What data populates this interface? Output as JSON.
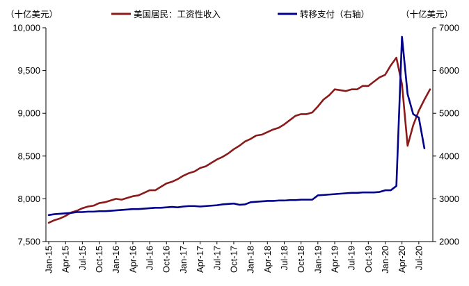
{
  "chart_data": {
    "type": "line",
    "unit_left": "（十亿美元）",
    "unit_right": "（十亿美元）",
    "ylim_left": [
      7500,
      10000
    ],
    "yticks_left": [
      "7,500",
      "8,000",
      "8,500",
      "9,000",
      "9,500",
      "10,000"
    ],
    "ylim_right": [
      2000,
      7000
    ],
    "yticks_right": [
      "2000",
      "3000",
      "4000",
      "5000",
      "6000",
      "7000"
    ],
    "x_tick_labels": [
      "Jan-15",
      "Apr-15",
      "Jul-15",
      "Oct-15",
      "Jan-16",
      "Apr-16",
      "Jul-16",
      "Oct-16",
      "Jan-17",
      "Apr-17",
      "Jul-17",
      "Oct-17",
      "Jan-18",
      "Apr-18",
      "Jul-18",
      "Oct-18",
      "Jan-19",
      "Apr-19",
      "Jul-19",
      "Oct-19",
      "Jan-20",
      "Apr-20",
      "Jul-20"
    ],
    "grid": false,
    "legend_position": "top",
    "series": [
      {
        "name": "美国居民：工资性收入",
        "axis": "left",
        "color": "#8B1A1A",
        "values": [
          [
            "2015-01",
            7720
          ],
          [
            "2015-02",
            7750
          ],
          [
            "2015-03",
            7770
          ],
          [
            "2015-04",
            7800
          ],
          [
            "2015-05",
            7840
          ],
          [
            "2015-06",
            7860
          ],
          [
            "2015-07",
            7890
          ],
          [
            "2015-08",
            7910
          ],
          [
            "2015-09",
            7920
          ],
          [
            "2015-10",
            7950
          ],
          [
            "2015-11",
            7960
          ],
          [
            "2015-12",
            7980
          ],
          [
            "2016-01",
            8000
          ],
          [
            "2016-02",
            7990
          ],
          [
            "2016-03",
            8010
          ],
          [
            "2016-04",
            8030
          ],
          [
            "2016-05",
            8040
          ],
          [
            "2016-06",
            8070
          ],
          [
            "2016-07",
            8100
          ],
          [
            "2016-08",
            8100
          ],
          [
            "2016-09",
            8140
          ],
          [
            "2016-10",
            8180
          ],
          [
            "2016-11",
            8200
          ],
          [
            "2016-12",
            8230
          ],
          [
            "2017-01",
            8270
          ],
          [
            "2017-02",
            8300
          ],
          [
            "2017-03",
            8320
          ],
          [
            "2017-04",
            8360
          ],
          [
            "2017-05",
            8380
          ],
          [
            "2017-06",
            8420
          ],
          [
            "2017-07",
            8460
          ],
          [
            "2017-08",
            8490
          ],
          [
            "2017-09",
            8530
          ],
          [
            "2017-10",
            8580
          ],
          [
            "2017-11",
            8620
          ],
          [
            "2017-12",
            8670
          ],
          [
            "2018-01",
            8700
          ],
          [
            "2018-02",
            8740
          ],
          [
            "2018-03",
            8750
          ],
          [
            "2018-04",
            8780
          ],
          [
            "2018-05",
            8810
          ],
          [
            "2018-06",
            8830
          ],
          [
            "2018-07",
            8870
          ],
          [
            "2018-08",
            8920
          ],
          [
            "2018-09",
            8970
          ],
          [
            "2018-10",
            8990
          ],
          [
            "2018-11",
            8990
          ],
          [
            "2018-12",
            9010
          ],
          [
            "2019-01",
            9080
          ],
          [
            "2019-02",
            9160
          ],
          [
            "2019-03",
            9210
          ],
          [
            "2019-04",
            9280
          ],
          [
            "2019-05",
            9270
          ],
          [
            "2019-06",
            9260
          ],
          [
            "2019-07",
            9280
          ],
          [
            "2019-08",
            9280
          ],
          [
            "2019-09",
            9320
          ],
          [
            "2019-10",
            9320
          ],
          [
            "2019-11",
            9370
          ],
          [
            "2019-12",
            9420
          ],
          [
            "2020-01",
            9450
          ],
          [
            "2020-02",
            9560
          ],
          [
            "2020-03",
            9650
          ],
          [
            "2020-04",
            9340
          ],
          [
            "2020-05",
            8620
          ],
          [
            "2020-06",
            8860
          ],
          [
            "2020-07",
            9030
          ],
          [
            "2020-08",
            9160
          ],
          [
            "2020-09",
            9280
          ]
        ]
      },
      {
        "name": "转移支付（右轴）",
        "axis": "right",
        "color": "#00008B",
        "values": [
          [
            "2015-01",
            2620
          ],
          [
            "2015-02",
            2640
          ],
          [
            "2015-03",
            2650
          ],
          [
            "2015-04",
            2660
          ],
          [
            "2015-05",
            2670
          ],
          [
            "2015-06",
            2690
          ],
          [
            "2015-07",
            2690
          ],
          [
            "2015-08",
            2700
          ],
          [
            "2015-09",
            2700
          ],
          [
            "2015-10",
            2710
          ],
          [
            "2015-11",
            2710
          ],
          [
            "2015-12",
            2720
          ],
          [
            "2016-01",
            2730
          ],
          [
            "2016-02",
            2740
          ],
          [
            "2016-03",
            2750
          ],
          [
            "2016-04",
            2760
          ],
          [
            "2016-05",
            2760
          ],
          [
            "2016-06",
            2770
          ],
          [
            "2016-07",
            2780
          ],
          [
            "2016-08",
            2790
          ],
          [
            "2016-09",
            2790
          ],
          [
            "2016-10",
            2800
          ],
          [
            "2016-11",
            2810
          ],
          [
            "2016-12",
            2800
          ],
          [
            "2017-01",
            2820
          ],
          [
            "2017-02",
            2830
          ],
          [
            "2017-03",
            2830
          ],
          [
            "2017-04",
            2820
          ],
          [
            "2017-05",
            2830
          ],
          [
            "2017-06",
            2840
          ],
          [
            "2017-07",
            2850
          ],
          [
            "2017-08",
            2870
          ],
          [
            "2017-09",
            2880
          ],
          [
            "2017-10",
            2890
          ],
          [
            "2017-11",
            2860
          ],
          [
            "2017-12",
            2870
          ],
          [
            "2018-01",
            2920
          ],
          [
            "2018-02",
            2930
          ],
          [
            "2018-03",
            2940
          ],
          [
            "2018-04",
            2950
          ],
          [
            "2018-05",
            2950
          ],
          [
            "2018-06",
            2960
          ],
          [
            "2018-07",
            2960
          ],
          [
            "2018-08",
            2970
          ],
          [
            "2018-09",
            2970
          ],
          [
            "2018-10",
            2980
          ],
          [
            "2018-11",
            2980
          ],
          [
            "2018-12",
            2980
          ],
          [
            "2019-01",
            3080
          ],
          [
            "2019-02",
            3090
          ],
          [
            "2019-03",
            3100
          ],
          [
            "2019-04",
            3110
          ],
          [
            "2019-05",
            3120
          ],
          [
            "2019-06",
            3130
          ],
          [
            "2019-07",
            3140
          ],
          [
            "2019-08",
            3140
          ],
          [
            "2019-09",
            3150
          ],
          [
            "2019-10",
            3150
          ],
          [
            "2019-11",
            3150
          ],
          [
            "2019-12",
            3160
          ],
          [
            "2020-01",
            3200
          ],
          [
            "2020-02",
            3200
          ],
          [
            "2020-03",
            3300
          ],
          [
            "2020-04",
            6790
          ],
          [
            "2020-05",
            5450
          ],
          [
            "2020-06",
            4980
          ],
          [
            "2020-07",
            4900
          ],
          [
            "2020-08",
            4180
          ]
        ]
      }
    ]
  }
}
